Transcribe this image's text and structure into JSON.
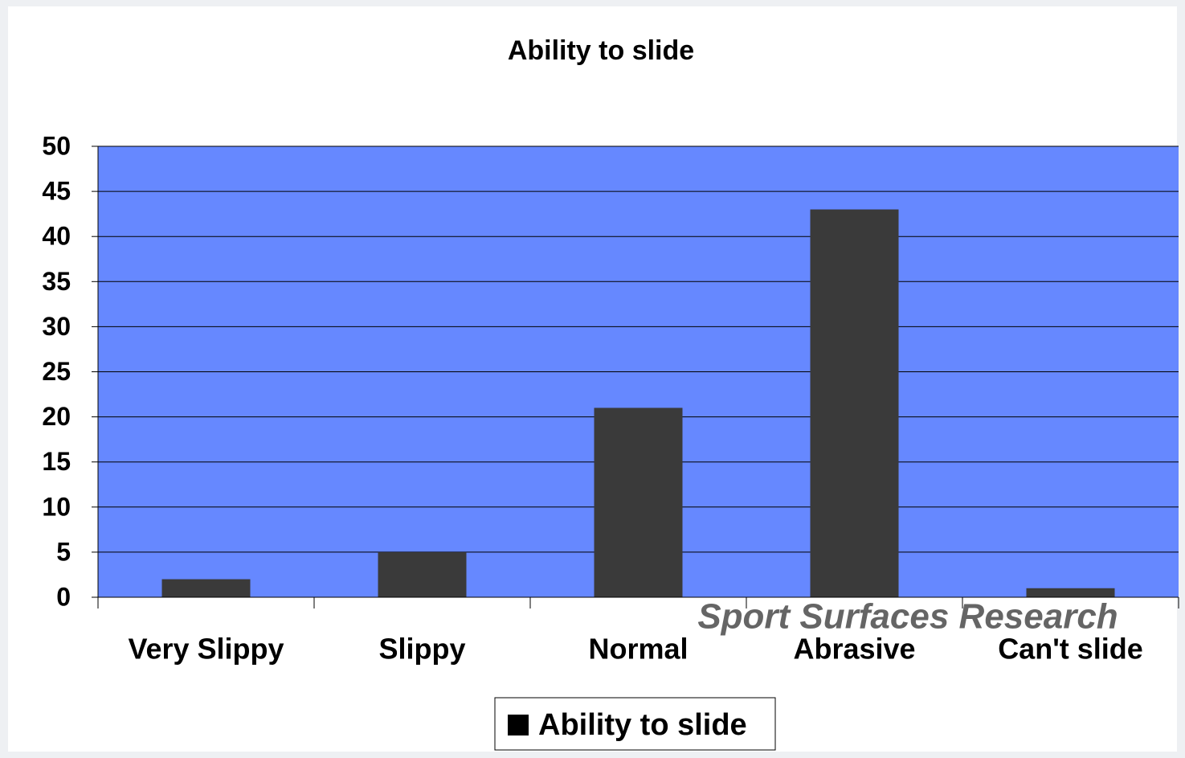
{
  "chart_data": {
    "type": "bar",
    "title": "Ability to slide",
    "categories": [
      "Very Slippy",
      "Slippy",
      "Normal",
      "Abrasive",
      "Can't slide"
    ],
    "series": [
      {
        "name": "Ability to slide",
        "color": "#3a3a3a",
        "values": [
          2,
          5,
          21,
          43,
          1
        ]
      }
    ],
    "ylim": [
      0,
      50
    ],
    "yticks": [
      0,
      5,
      10,
      15,
      20,
      25,
      30,
      35,
      40,
      45,
      50
    ],
    "grid": true,
    "plot_color": "#6688ff",
    "legend": "bottom",
    "watermark": "Sport Surfaces Research"
  }
}
